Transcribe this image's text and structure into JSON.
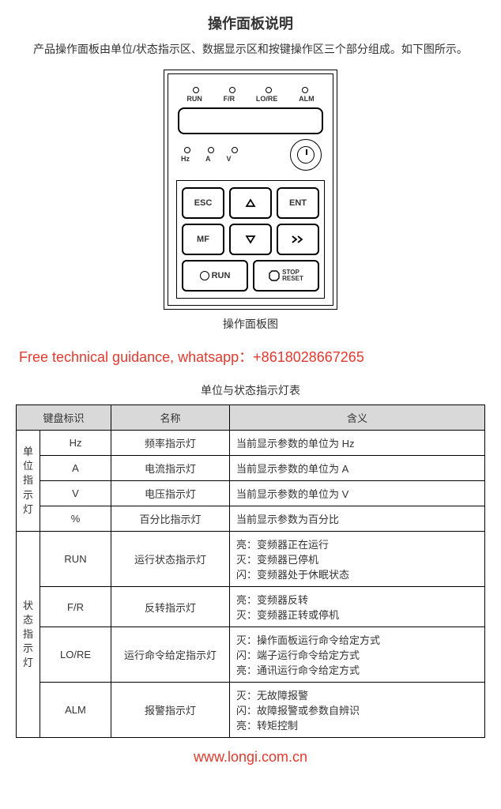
{
  "title": "操作面板说明",
  "intro": "产品操作面板由单位/状态指示区、数据显示区和按键操作区三个部分组成。如下图所示。",
  "panel": {
    "top_leds": [
      "RUN",
      "F/R",
      "LO/RE",
      "ALM"
    ],
    "unit_leds": [
      "Hz",
      "A",
      "V"
    ],
    "keys": {
      "esc": "ESC",
      "ent": "ENT",
      "mf": "MF",
      "run": "RUN",
      "stop1": "STOP",
      "stop2": "RESET"
    },
    "caption": "操作面板图"
  },
  "promo": "Free technical guidance, whatsapp：+8618028667265",
  "table_caption": "单位与状态指示灯表",
  "table": {
    "headers": {
      "c1": "键盘标识",
      "c2": "名称",
      "c3": "含义"
    },
    "group1": {
      "side": "单位指示灯",
      "rows": [
        {
          "code": "Hz",
          "name": "频率指示灯",
          "meaning": [
            "当前显示参数的单位为 Hz"
          ]
        },
        {
          "code": "A",
          "name": "电流指示灯",
          "meaning": [
            "当前显示参数的单位为 A"
          ]
        },
        {
          "code": "V",
          "name": "电压指示灯",
          "meaning": [
            "当前显示参数的单位为 V"
          ]
        },
        {
          "code": "%",
          "name": "百分比指示灯",
          "meaning": [
            "当前显示参数为百分比"
          ]
        }
      ]
    },
    "group2": {
      "side": "状态指示灯",
      "rows": [
        {
          "code": "RUN",
          "name": "运行状态指示灯",
          "meaning": [
            "亮：变频器正在运行",
            "灭：变频器已停机",
            "闪：变频器处于休眠状态"
          ]
        },
        {
          "code": "F/R",
          "name": "反转指示灯",
          "meaning": [
            "亮：变频器反转",
            "灭：变频器正转或停机"
          ]
        },
        {
          "code": "LO/RE",
          "name": "运行命令给定指示灯",
          "meaning": [
            "灭：操作面板运行命令给定方式",
            "闪：端子运行命令给定方式",
            "亮：通讯运行命令给定方式"
          ]
        },
        {
          "code": "ALM",
          "name": "报警指示灯",
          "meaning": [
            "灭：无故障报警",
            "闪：故障报警或参数自辨识",
            "亮：转矩控制"
          ]
        }
      ]
    }
  },
  "footer_url": "www.longi.com.cn",
  "colors": {
    "accent": "#e23a2e",
    "header_bg": "#d9d9d9",
    "border": "#000000",
    "bg": "#ffffff"
  }
}
